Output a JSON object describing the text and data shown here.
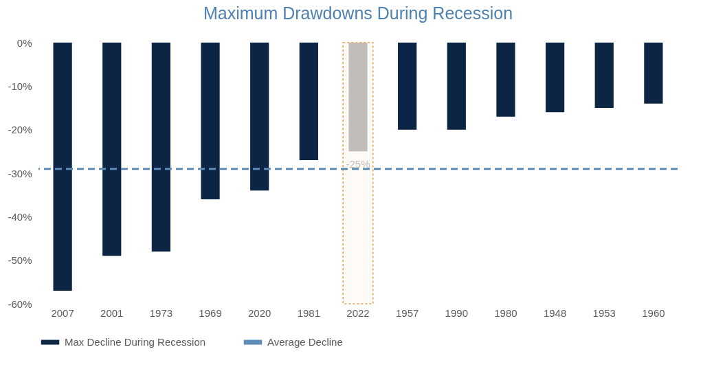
{
  "chart_data": {
    "type": "bar",
    "title": "Maximum Drawdowns During Recession",
    "categories": [
      "2007",
      "2001",
      "1973",
      "1969",
      "2020",
      "1981",
      "2022",
      "1957",
      "1990",
      "1980",
      "1948",
      "1953",
      "1960"
    ],
    "series": [
      {
        "name": "Max Decline During Recession",
        "color": "#0c2544",
        "values": [
          -57,
          -49,
          -48,
          -36,
          -34,
          -27,
          -25,
          -20,
          -20,
          -17,
          -16,
          -15,
          -14
        ],
        "value_labels": [
          null,
          null,
          null,
          null,
          null,
          null,
          "-25%",
          null,
          null,
          null,
          null,
          null,
          null
        ],
        "colors": [
          "#0c2544",
          "#0c2544",
          "#0c2544",
          "#0c2544",
          "#0c2544",
          "#0c2544",
          "#bfbfbf",
          "#0c2544",
          "#0c2544",
          "#0c2544",
          "#0c2544",
          "#0c2544",
          "#0c2544"
        ]
      }
    ],
    "ylim": [
      -60,
      0
    ],
    "yticks": [
      {
        "value": 0,
        "label": "0%"
      },
      {
        "value": -10,
        "label": "-10%"
      },
      {
        "value": -20,
        "label": "-20%"
      },
      {
        "value": -30,
        "label": "-30%"
      },
      {
        "value": -40,
        "label": "-40%"
      },
      {
        "value": -50,
        "label": "-50%"
      },
      {
        "value": -60,
        "label": "-60%"
      }
    ],
    "bands": [
      {
        "axis": "x",
        "from": "2022",
        "to": "2022",
        "color": "#e8a050"
      }
    ],
    "ref_lines": [
      {
        "axis": "y",
        "value": -29,
        "label": "Average Decline",
        "color": "#5b8cb8",
        "line_style": "dashed"
      }
    ],
    "grid": false,
    "legend": "bottom"
  }
}
